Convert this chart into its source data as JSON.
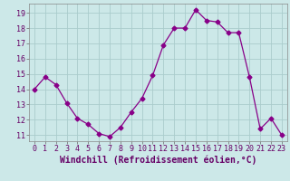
{
  "x": [
    0,
    1,
    2,
    3,
    4,
    5,
    6,
    7,
    8,
    9,
    10,
    11,
    12,
    13,
    14,
    15,
    16,
    17,
    18,
    19,
    20,
    21,
    22,
    23
  ],
  "y": [
    14.0,
    14.8,
    14.3,
    13.1,
    12.1,
    11.7,
    11.1,
    10.9,
    11.5,
    12.5,
    13.4,
    14.9,
    16.9,
    18.0,
    18.0,
    19.2,
    18.5,
    18.4,
    17.7,
    17.7,
    14.8,
    11.4,
    12.1,
    11.0
  ],
  "line_color": "#880088",
  "marker": "D",
  "marker_size": 2.5,
  "xlabel": "Windchill (Refroidissement éolien,°C)",
  "xlim": [
    -0.5,
    23.5
  ],
  "ylim": [
    10.6,
    19.6
  ],
  "yticks": [
    11,
    12,
    13,
    14,
    15,
    16,
    17,
    18,
    19
  ],
  "xticks": [
    0,
    1,
    2,
    3,
    4,
    5,
    6,
    7,
    8,
    9,
    10,
    11,
    12,
    13,
    14,
    15,
    16,
    17,
    18,
    19,
    20,
    21,
    22,
    23
  ],
  "background_color": "#cce8e8",
  "grid_color": "#aacccc",
  "tick_fontsize": 6,
  "xlabel_fontsize": 7
}
